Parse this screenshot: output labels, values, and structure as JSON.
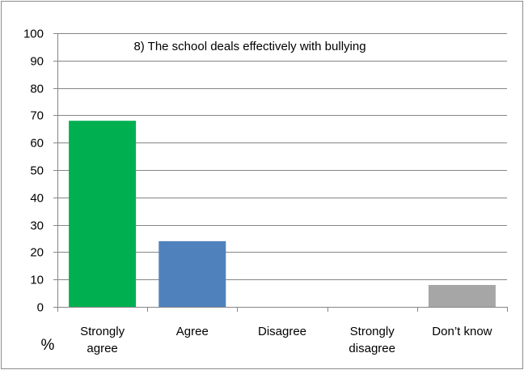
{
  "chart_data": {
    "type": "bar",
    "title": "8) The school deals effectively with bullying",
    "ylabel": "%",
    "xlabel": "",
    "ylim": [
      0,
      100
    ],
    "yticks": [
      0,
      10,
      20,
      30,
      40,
      50,
      60,
      70,
      80,
      90,
      100
    ],
    "grid": true,
    "legend": "none",
    "categories": [
      [
        "Strongly",
        "agree"
      ],
      [
        "Agree"
      ],
      [
        "Disagree"
      ],
      [
        "Strongly",
        "disagree"
      ],
      [
        "Don’t know"
      ]
    ],
    "values": [
      68,
      24,
      0,
      0,
      8
    ],
    "colors": [
      "#00b050",
      "#4f81bd",
      "#c0504d",
      "#9bbb59",
      "#a6a6a6"
    ]
  }
}
